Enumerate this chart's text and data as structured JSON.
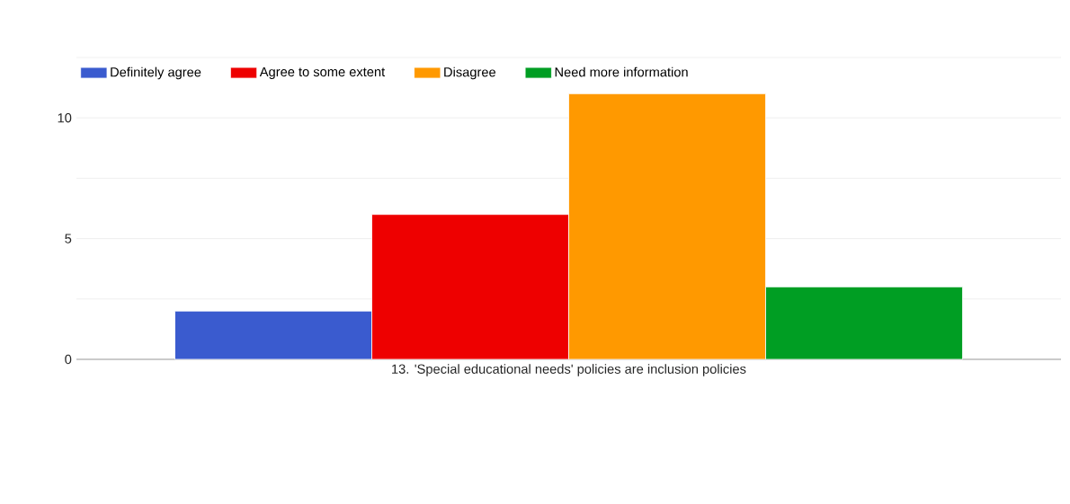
{
  "chart_data": {
    "type": "bar",
    "categories": [
      "13. 'Special educational needs' policies are inclusion policies"
    ],
    "series": [
      {
        "name": "Definitely agree",
        "color": "#3a5bcf",
        "values": [
          2
        ]
      },
      {
        "name": "Agree to some extent",
        "color": "#ee0000",
        "values": [
          6
        ]
      },
      {
        "name": "Disagree",
        "color": "#ff9900",
        "values": [
          11
        ]
      },
      {
        "name": "Need more information",
        "color": "#009e23",
        "values": [
          3
        ]
      }
    ],
    "ylim": [
      0,
      12.5
    ],
    "yticks": [
      0,
      {
        "value": 2.5,
        "label": null
      },
      5,
      {
        "value": 7.5,
        "label": null
      },
      10,
      {
        "value": 12.5,
        "label": null
      }
    ],
    "grid": "y",
    "legend": "top left"
  }
}
